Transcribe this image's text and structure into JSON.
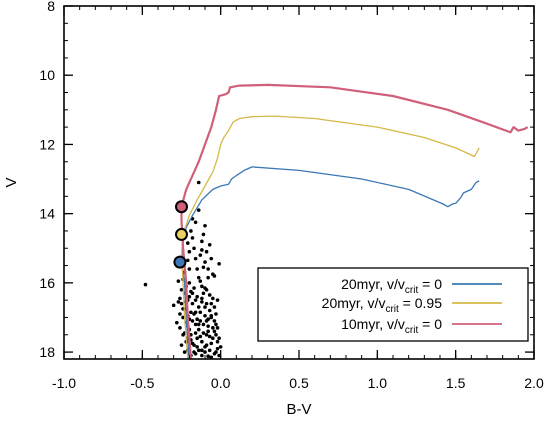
{
  "chart_data": {
    "type": "line",
    "xlabel": "B-V",
    "ylabel": "V",
    "xlim": [
      -1.0,
      2.0
    ],
    "ylim": [
      18.2,
      8.0
    ],
    "y_inverted": true,
    "grid": false,
    "legend_position": "bottom-right",
    "x_ticks": [
      "-1.0",
      "-0.5",
      "0.0",
      "0.5",
      "1.0",
      "1.5",
      "2.0"
    ],
    "x_tick_values": [
      -1.0,
      -0.5,
      0.0,
      0.5,
      1.0,
      1.5,
      2.0
    ],
    "y_ticks": [
      "8",
      "10",
      "12",
      "14",
      "16",
      "18"
    ],
    "y_tick_values": [
      8,
      10,
      12,
      14,
      16,
      18
    ],
    "series": [
      {
        "legend_main": "20myr, v/v",
        "legend_sub": "crit",
        "legend_tail": " = 0",
        "color": "#3b78b5",
        "width": 1.3,
        "points": [
          [
            -0.2,
            18.2
          ],
          [
            -0.22,
            17.0
          ],
          [
            -0.23,
            16.0
          ],
          [
            -0.25,
            15.4
          ],
          [
            -0.24,
            14.8
          ],
          [
            -0.22,
            14.4
          ],
          [
            -0.18,
            14.05
          ],
          [
            -0.12,
            13.6
          ],
          [
            -0.05,
            13.3
          ],
          [
            0.0,
            13.2
          ],
          [
            0.05,
            13.15
          ],
          [
            0.07,
            13.0
          ],
          [
            0.1,
            12.9
          ],
          [
            0.15,
            12.75
          ],
          [
            0.2,
            12.65
          ],
          [
            0.5,
            12.75
          ],
          [
            0.9,
            13.0
          ],
          [
            1.2,
            13.3
          ],
          [
            1.42,
            13.72
          ],
          [
            1.45,
            13.8
          ],
          [
            1.48,
            13.72
          ],
          [
            1.5,
            13.7
          ],
          [
            1.53,
            13.55
          ],
          [
            1.55,
            13.4
          ],
          [
            1.6,
            13.3
          ],
          [
            1.63,
            13.1
          ],
          [
            1.65,
            13.05
          ]
        ]
      },
      {
        "legend_main": "20myr, v/v",
        "legend_sub": "crit",
        "legend_tail": " = 0.95",
        "color": "#d4b948",
        "width": 1.3,
        "points": [
          [
            -0.21,
            18.2
          ],
          [
            -0.23,
            17.0
          ],
          [
            -0.24,
            16.0
          ],
          [
            -0.25,
            15.2
          ],
          [
            -0.24,
            14.6
          ],
          [
            -0.2,
            14.05
          ],
          [
            -0.15,
            13.6
          ],
          [
            -0.1,
            13.2
          ],
          [
            -0.05,
            12.8
          ],
          [
            -0.02,
            12.4
          ],
          [
            0.0,
            12.0
          ],
          [
            0.02,
            11.8
          ],
          [
            0.05,
            11.6
          ],
          [
            0.08,
            11.35
          ],
          [
            0.12,
            11.25
          ],
          [
            0.2,
            11.2
          ],
          [
            0.35,
            11.18
          ],
          [
            0.6,
            11.25
          ],
          [
            1.0,
            11.5
          ],
          [
            1.3,
            11.8
          ],
          [
            1.5,
            12.1
          ],
          [
            1.62,
            12.35
          ],
          [
            1.65,
            12.1
          ]
        ]
      },
      {
        "legend_main": "10myr, v/v",
        "legend_sub": "crit",
        "legend_tail": " = 0",
        "color": "#d0607a",
        "width": 2.2,
        "points": [
          [
            -0.19,
            18.2
          ],
          [
            -0.21,
            17.0
          ],
          [
            -0.22,
            16.0
          ],
          [
            -0.24,
            15.0
          ],
          [
            -0.25,
            14.2
          ],
          [
            -0.25,
            13.8
          ],
          [
            -0.22,
            13.3
          ],
          [
            -0.18,
            12.9
          ],
          [
            -0.14,
            12.5
          ],
          [
            -0.1,
            12.0
          ],
          [
            -0.06,
            11.5
          ],
          [
            -0.03,
            11.0
          ],
          [
            -0.01,
            10.6
          ],
          [
            0.03,
            10.55
          ],
          [
            0.05,
            10.5
          ],
          [
            0.06,
            10.35
          ],
          [
            0.12,
            10.3
          ],
          [
            0.3,
            10.28
          ],
          [
            0.7,
            10.35
          ],
          [
            1.1,
            10.6
          ],
          [
            1.45,
            11.0
          ],
          [
            1.7,
            11.4
          ],
          [
            1.85,
            11.65
          ],
          [
            1.87,
            11.5
          ],
          [
            1.9,
            11.6
          ],
          [
            1.94,
            11.55
          ],
          [
            1.96,
            11.5
          ]
        ]
      }
    ],
    "markers": [
      {
        "color": "#d0607a",
        "x": -0.25,
        "y": 13.8
      },
      {
        "color": "#e8d261",
        "x": -0.25,
        "y": 14.6
      },
      {
        "color": "#3b78b5",
        "x": -0.26,
        "y": 15.4
      }
    ],
    "scatter_color": "#000000",
    "scatter": [
      [
        -0.14,
        13.1
      ],
      [
        -0.14,
        13.9
      ],
      [
        -0.16,
        14.25
      ],
      [
        -0.12,
        14.8
      ],
      [
        -0.07,
        14.9
      ],
      [
        -0.09,
        15.1
      ],
      [
        -0.1,
        15.4
      ],
      [
        -0.08,
        15.6
      ],
      [
        -0.11,
        15.55
      ],
      [
        -0.05,
        15.75
      ],
      [
        -0.04,
        15.8
      ],
      [
        -0.48,
        16.05
      ],
      [
        -0.3,
        16.65
      ],
      [
        -0.28,
        17.15
      ],
      [
        -0.18,
        14.15
      ],
      [
        -0.13,
        15.95
      ],
      [
        -0.12,
        16.1
      ],
      [
        -0.09,
        16.2
      ],
      [
        -0.07,
        16.35
      ],
      [
        -0.05,
        16.45
      ],
      [
        -0.06,
        16.6
      ],
      [
        -0.09,
        16.6
      ],
      [
        -0.12,
        16.55
      ],
      [
        -0.15,
        16.4
      ],
      [
        -0.14,
        16.7
      ],
      [
        -0.13,
        16.85
      ],
      [
        -0.1,
        16.95
      ],
      [
        -0.08,
        17.05
      ],
      [
        -0.06,
        17.0
      ],
      [
        -0.04,
        17.1
      ],
      [
        -0.03,
        17.2
      ],
      [
        -0.05,
        17.3
      ],
      [
        -0.08,
        17.25
      ],
      [
        -0.11,
        17.2
      ],
      [
        -0.13,
        17.1
      ],
      [
        -0.15,
        17.05
      ],
      [
        -0.16,
        17.2
      ],
      [
        -0.14,
        17.35
      ],
      [
        -0.11,
        17.45
      ],
      [
        -0.09,
        17.5
      ],
      [
        -0.07,
        17.55
      ],
      [
        -0.05,
        17.6
      ],
      [
        -0.03,
        17.5
      ],
      [
        -0.02,
        17.7
      ],
      [
        -0.06,
        17.75
      ],
      [
        -0.09,
        17.8
      ],
      [
        -0.12,
        17.7
      ],
      [
        -0.15,
        17.6
      ],
      [
        -0.17,
        17.8
      ],
      [
        -0.14,
        17.95
      ],
      [
        -0.1,
        18.0
      ],
      [
        -0.07,
        17.95
      ],
      [
        -0.04,
        18.05
      ],
      [
        -0.02,
        17.9
      ],
      [
        -0.01,
        18.1
      ],
      [
        -0.08,
        18.12
      ],
      [
        -0.12,
        18.1
      ],
      [
        -0.16,
        18.05
      ],
      [
        -0.19,
        18.1
      ],
      [
        -0.2,
        17.9
      ],
      [
        -0.21,
        17.6
      ],
      [
        -0.2,
        17.35
      ],
      [
        -0.22,
        17.15
      ],
      [
        -0.21,
        16.95
      ],
      [
        -0.22,
        16.75
      ],
      [
        -0.21,
        16.5
      ],
      [
        -0.23,
        16.3
      ],
      [
        -0.22,
        16.1
      ],
      [
        -0.24,
        15.9
      ],
      [
        -0.23,
        15.7
      ],
      [
        -0.24,
        17.5
      ],
      [
        -0.25,
        17.8
      ],
      [
        -0.23,
        18.0
      ],
      [
        -0.26,
        16.9
      ],
      [
        -0.25,
        16.2
      ],
      [
        -0.27,
        15.95
      ],
      [
        -0.26,
        17.3
      ],
      [
        -0.27,
        16.55
      ],
      [
        -0.2,
        16.0
      ],
      [
        -0.19,
        16.25
      ],
      [
        -0.18,
        16.6
      ],
      [
        -0.19,
        16.85
      ],
      [
        -0.18,
        17.1
      ],
      [
        -0.19,
        17.5
      ],
      [
        -0.18,
        17.75
      ],
      [
        -0.17,
        18.0
      ],
      [
        -0.17,
        16.15
      ],
      [
        -0.16,
        16.5
      ],
      [
        -0.17,
        16.9
      ],
      [
        -0.16,
        17.45
      ],
      [
        -0.15,
        17.85
      ],
      [
        -0.11,
        16.3
      ],
      [
        -0.1,
        16.7
      ],
      [
        -0.07,
        16.8
      ],
      [
        -0.03,
        16.9
      ],
      [
        -0.12,
        17.95
      ],
      [
        -0.06,
        18.15
      ],
      [
        -0.04,
        17.4
      ],
      [
        -0.02,
        17.3
      ],
      [
        -0.01,
        17.6
      ],
      [
        0.0,
        17.85
      ],
      [
        -0.2,
        15.6
      ],
      [
        -0.21,
        15.35
      ],
      [
        -0.2,
        15.1
      ],
      [
        -0.21,
        14.85
      ],
      [
        -0.19,
        14.5
      ],
      [
        -0.18,
        14.7
      ],
      [
        -0.17,
        15.0
      ],
      [
        -0.16,
        15.3
      ],
      [
        -0.15,
        15.6
      ],
      [
        -0.14,
        15.85
      ],
      [
        -0.13,
        15.2
      ],
      [
        -0.12,
        15.05
      ],
      [
        -0.11,
        14.6
      ],
      [
        -0.1,
        14.35
      ],
      [
        -0.06,
        15.3
      ],
      [
        -0.08,
        15.85
      ],
      [
        -0.01,
        15.45
      ],
      [
        -0.2,
        17.05
      ],
      [
        -0.21,
        17.25
      ],
      [
        -0.22,
        17.7
      ],
      [
        -0.2,
        18.05
      ],
      [
        -0.23,
        17.45
      ],
      [
        -0.24,
        17.0
      ],
      [
        -0.25,
        16.6
      ],
      [
        -0.26,
        16.45
      ],
      [
        -0.24,
        16.75
      ],
      [
        -0.22,
        16.55
      ],
      [
        -0.2,
        16.4
      ],
      [
        -0.18,
        16.3
      ],
      [
        -0.16,
        16.85
      ],
      [
        -0.14,
        17.2
      ],
      [
        -0.13,
        17.55
      ],
      [
        -0.1,
        17.85
      ],
      [
        -0.08,
        17.4
      ],
      [
        -0.06,
        16.95
      ],
      [
        -0.04,
        16.7
      ],
      [
        -0.02,
        16.5
      ],
      [
        -0.12,
        16.45
      ],
      [
        -0.1,
        16.15
      ],
      [
        -0.09,
        17.1
      ],
      [
        -0.03,
        18.0
      ],
      [
        -0.19,
        17.65
      ],
      [
        -0.21,
        17.95
      ]
    ]
  }
}
